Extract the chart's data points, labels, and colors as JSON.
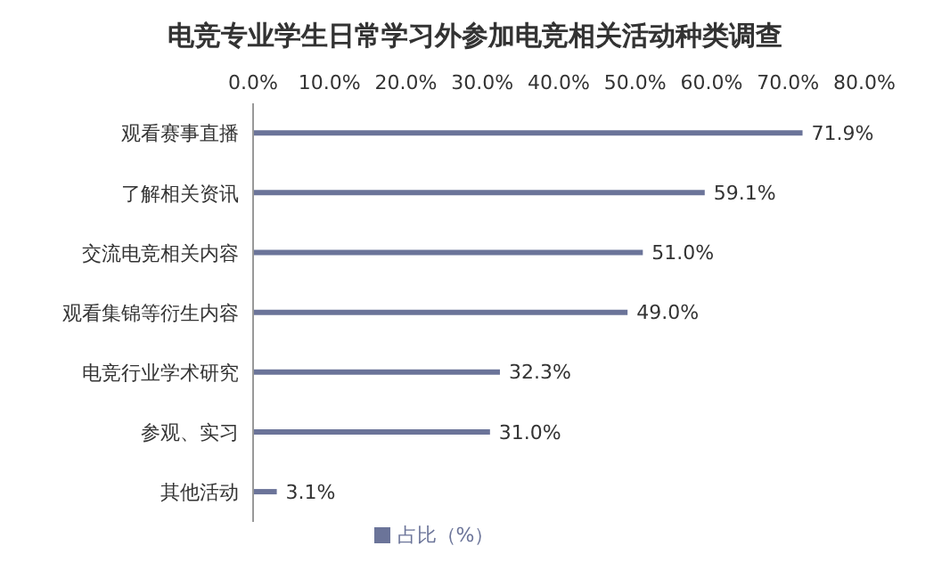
{
  "chart_data": {
    "type": "bar",
    "orientation": "horizontal",
    "title": "电竞专业学生日常学习外参加电竞相关活动种类调查",
    "categories": [
      "观看赛事直播",
      "了解相关资讯",
      "交流电竞相关内容",
      "观看集锦等衍生内容",
      "电竞行业学术研究",
      "参观、实习",
      "其他活动"
    ],
    "series": [
      {
        "name": "占比（%）",
        "color": "#6b7499",
        "values": [
          71.9,
          59.1,
          51.0,
          49.0,
          32.3,
          31.0,
          3.1
        ],
        "value_labels": [
          "71.9%",
          "59.1%",
          "51.0%",
          "49.0%",
          "32.3%",
          "31.0%",
          "3.1%"
        ]
      }
    ],
    "xlim": [
      0,
      80
    ],
    "xticks": [
      {
        "value": 0,
        "label": "0.0%"
      },
      {
        "value": 10,
        "label": "10.0%"
      },
      {
        "value": 20,
        "label": "20.0%"
      },
      {
        "value": 30,
        "label": "30.0%"
      },
      {
        "value": 40,
        "label": "40.0%"
      },
      {
        "value": 50,
        "label": "50.0%"
      },
      {
        "value": 60,
        "label": "60.0%"
      },
      {
        "value": 70,
        "label": "70.0%"
      },
      {
        "value": 80,
        "label": "80.0%"
      }
    ],
    "legend": "bottom"
  }
}
